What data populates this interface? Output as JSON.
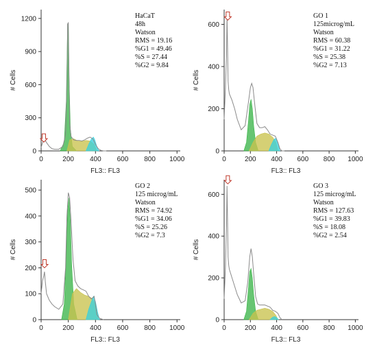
{
  "colors": {
    "g1": "#3cb54a",
    "s": "#c9c34e",
    "g2": "#38d0dc",
    "apoptotic": "#e0e0e0",
    "overlay": "#8a8a8a",
    "marker": "#c0392b"
  },
  "chart_data": [
    {
      "type": "area",
      "xlabel": "FL3:: FL3",
      "ylabel": "# Cells",
      "xlim": [
        0,
        1024
      ],
      "ylim": [
        0,
        1280
      ],
      "xticks": [
        0,
        200,
        400,
        600,
        800,
        1000
      ],
      "yticks": [
        0,
        300,
        600,
        900,
        1200
      ],
      "annotation": [
        "HaCaT",
        "48h",
        "Watson",
        "RMS = 19.16",
        "%G1 = 49.46",
        "%S = 27.44",
        "%G2 = 9.84"
      ],
      "marker_x": 20,
      "marker_y": 80,
      "series": [
        {
          "name": "overlay",
          "x": [
            0,
            15,
            25,
            40,
            60,
            80,
            100,
            130,
            160,
            180,
            190,
            195,
            200,
            205,
            210,
            220,
            240,
            260,
            280,
            300,
            320,
            340,
            360,
            380,
            400,
            420,
            440,
            460,
            480
          ],
          "y": [
            30,
            95,
            105,
            75,
            40,
            20,
            15,
            15,
            40,
            150,
            600,
            1150,
            1160,
            700,
            250,
            130,
            100,
            95,
            95,
            90,
            100,
            115,
            125,
            110,
            60,
            20,
            5,
            0,
            0
          ]
        },
        {
          "name": "G1",
          "x": [
            140,
            170,
            185,
            195,
            200,
            205,
            215,
            230,
            260
          ],
          "y": [
            0,
            80,
            450,
            1150,
            1160,
            700,
            200,
            40,
            0
          ]
        },
        {
          "name": "S",
          "x": [
            190,
            210,
            240,
            270,
            300,
            330,
            360,
            390,
            410
          ],
          "y": [
            0,
            100,
            110,
            90,
            85,
            95,
            90,
            60,
            0
          ]
        },
        {
          "name": "G2",
          "x": [
            330,
            350,
            370,
            385,
            395,
            410,
            425
          ],
          "y": [
            0,
            60,
            110,
            125,
            100,
            40,
            0
          ]
        }
      ]
    },
    {
      "type": "area",
      "xlabel": "FL3:: FL3",
      "ylabel": "# Cells",
      "xlim": [
        0,
        1024
      ],
      "ylim": [
        0,
        670
      ],
      "xticks": [
        0,
        200,
        400,
        600,
        800,
        1000
      ],
      "yticks": [
        0,
        200,
        400,
        600
      ],
      "annotation": [
        "GO 1",
        "125microg/mL",
        "Watson",
        "RMS = 60.38",
        "%G1 = 31.22",
        "%S = 25.38",
        "%G2 = 7.13"
      ],
      "marker_x": 28,
      "marker_y": 620,
      "series": [
        {
          "name": "overlay",
          "x": [
            0,
            10,
            18,
            22,
            26,
            30,
            35,
            40,
            60,
            80,
            100,
            130,
            160,
            185,
            200,
            210,
            220,
            235,
            250,
            270,
            290,
            310,
            330,
            350,
            370,
            390,
            410,
            425,
            440,
            460
          ],
          "y": [
            150,
            300,
            450,
            640,
            500,
            330,
            290,
            270,
            240,
            200,
            150,
            100,
            120,
            230,
            300,
            320,
            300,
            210,
            130,
            110,
            110,
            115,
            100,
            80,
            75,
            70,
            40,
            10,
            0,
            0
          ]
        },
        {
          "name": "G1",
          "x": [
            150,
            170,
            185,
            195,
            205,
            215,
            225,
            240,
            260
          ],
          "y": [
            0,
            40,
            140,
            220,
            245,
            200,
            120,
            40,
            0
          ]
        },
        {
          "name": "S",
          "x": [
            190,
            220,
            250,
            280,
            310,
            340,
            370,
            395,
            410
          ],
          "y": [
            0,
            40,
            70,
            80,
            85,
            80,
            65,
            40,
            0
          ]
        },
        {
          "name": "G2",
          "x": [
            340,
            360,
            380,
            395,
            410,
            425
          ],
          "y": [
            0,
            30,
            55,
            60,
            40,
            0
          ]
        }
      ]
    },
    {
      "type": "area",
      "xlabel": "FL3:: FL3",
      "ylabel": "# Cells",
      "xlim": [
        0,
        1024
      ],
      "ylim": [
        0,
        540
      ],
      "xticks": [
        0,
        200,
        400,
        600,
        800,
        1000
      ],
      "yticks": [
        0,
        100,
        200,
        300,
        400,
        500
      ],
      "annotation": [
        "GO 2",
        "125 microg/mL",
        "Watson",
        "RMS = 74.92",
        "%G1 = 34.06",
        "%S = 25.26",
        "%G2 = 7.3"
      ],
      "marker_x": 25,
      "marker_y": 200,
      "series": [
        {
          "name": "overlay",
          "x": [
            0,
            10,
            20,
            25,
            30,
            40,
            60,
            80,
            100,
            130,
            160,
            180,
            190,
            200,
            210,
            220,
            235,
            250,
            270,
            290,
            310,
            330,
            350,
            370,
            380,
            390,
            400,
            410,
            430,
            460
          ],
          "y": [
            100,
            150,
            170,
            185,
            150,
            100,
            75,
            60,
            50,
            40,
            60,
            200,
            400,
            490,
            470,
            380,
            230,
            150,
            130,
            120,
            115,
            110,
            90,
            80,
            85,
            90,
            60,
            20,
            5,
            0
          ]
        },
        {
          "name": "G1",
          "x": [
            150,
            170,
            185,
            195,
            205,
            215,
            225,
            240,
            265
          ],
          "y": [
            0,
            60,
            250,
            420,
            470,
            380,
            210,
            60,
            0
          ]
        },
        {
          "name": "S",
          "x": [
            200,
            230,
            260,
            290,
            320,
            350,
            380,
            405,
            420
          ],
          "y": [
            0,
            100,
            120,
            105,
            95,
            90,
            80,
            50,
            0
          ]
        },
        {
          "name": "G2",
          "x": [
            330,
            350,
            370,
            385,
            400,
            415,
            430
          ],
          "y": [
            0,
            40,
            70,
            90,
            70,
            30,
            0
          ]
        }
      ]
    },
    {
      "type": "area",
      "xlabel": "FL3:: FL3",
      "ylabel": "# Cells",
      "xlim": [
        0,
        1024
      ],
      "ylim": [
        0,
        670
      ],
      "xticks": [
        0,
        200,
        400,
        600,
        800,
        1000
      ],
      "yticks": [
        0,
        200,
        400,
        600
      ],
      "annotation": [
        "GO 3",
        "125 microg/mL",
        "Watson",
        "RMS = 127.63",
        "%G1 = 39.83",
        "%S = 18.08",
        "%G2 = 2.54"
      ],
      "marker_x": 28,
      "marker_y": 650,
      "series": [
        {
          "name": "overlay",
          "x": [
            0,
            10,
            18,
            22,
            26,
            30,
            35,
            40,
            60,
            80,
            100,
            130,
            160,
            180,
            195,
            205,
            215,
            225,
            240,
            255,
            270,
            290,
            310,
            330,
            350,
            370,
            390,
            410,
            425,
            440
          ],
          "y": [
            100,
            250,
            450,
            640,
            480,
            300,
            260,
            240,
            200,
            160,
            120,
            80,
            90,
            180,
            300,
            340,
            300,
            220,
            110,
            75,
            70,
            70,
            70,
            65,
            60,
            45,
            40,
            30,
            10,
            0
          ]
        },
        {
          "name": "G1",
          "x": [
            150,
            170,
            185,
            195,
            205,
            215,
            225,
            240,
            260
          ],
          "y": [
            0,
            40,
            150,
            230,
            245,
            200,
            120,
            40,
            0
          ]
        },
        {
          "name": "S",
          "x": [
            190,
            220,
            250,
            280,
            310,
            340,
            370,
            395,
            410
          ],
          "y": [
            0,
            30,
            45,
            50,
            55,
            50,
            40,
            20,
            0
          ]
        },
        {
          "name": "G2",
          "x": [
            350,
            370,
            385,
            400,
            415
          ],
          "y": [
            0,
            12,
            15,
            10,
            0
          ]
        }
      ]
    }
  ]
}
